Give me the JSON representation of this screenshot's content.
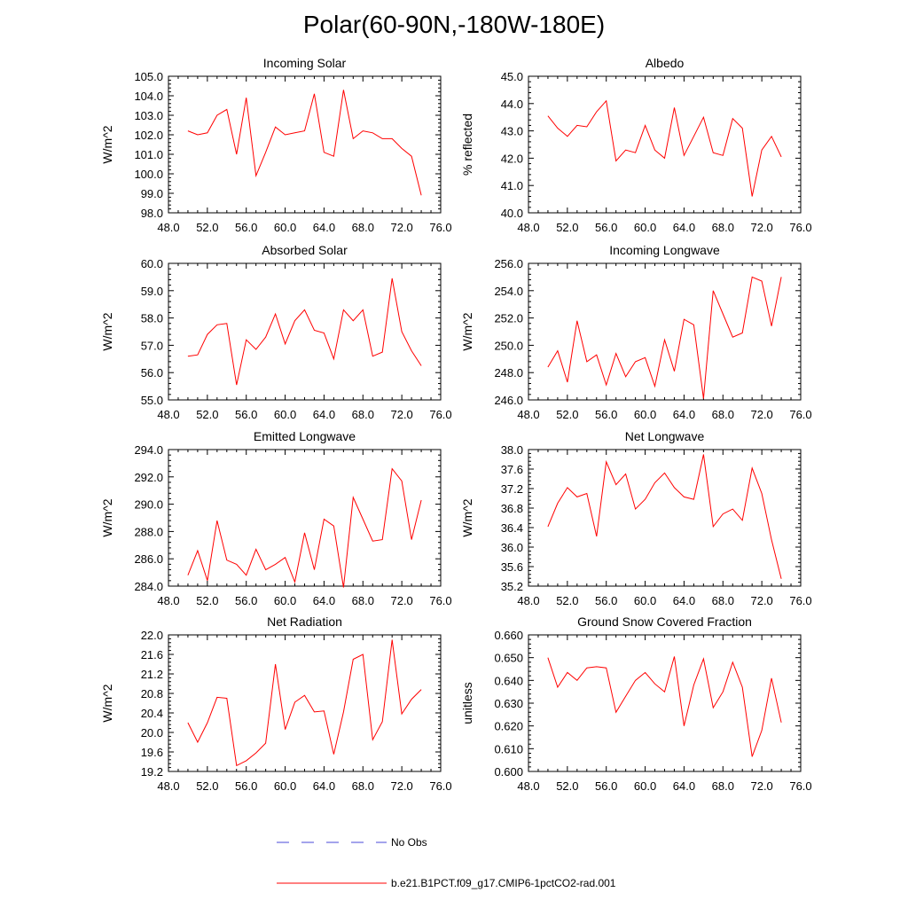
{
  "title": "Polar(60-90N,-180W-180E)",
  "legend": {
    "obs_label": "No Obs",
    "obs_color": "#4a4ad8",
    "model_label": "b.e21.B1PCT.f09_g17.CMIP6-1pctCO2-rad.001",
    "model_color": "#ff0000"
  },
  "chart_data": [
    {
      "type": "line",
      "title": "Incoming Solar",
      "ylabel": "W/m^2",
      "xlim": [
        48,
        76
      ],
      "ylim": [
        98,
        105
      ],
      "xticks": [
        "48.0",
        "52.0",
        "56.0",
        "60.0",
        "64.0",
        "68.0",
        "72.0",
        "76.0"
      ],
      "yticks": [
        "98.0",
        "99.0",
        "100.0",
        "101.0",
        "102.0",
        "103.0",
        "104.0",
        "105.0"
      ],
      "x": [
        50,
        51,
        52,
        53,
        54,
        55,
        56,
        57,
        58,
        59,
        60,
        61,
        62,
        63,
        64,
        65,
        66,
        67,
        68,
        69,
        70,
        71,
        72,
        73,
        74
      ],
      "series": [
        {
          "name": "b.e21.B1PCT.f09_g17.CMIP6-1pctCO2-rad.001",
          "values": [
            102.2,
            102.0,
            102.1,
            103.0,
            103.3,
            101.0,
            103.9,
            99.9,
            101.1,
            102.4,
            102.0,
            102.1,
            102.2,
            104.1,
            101.1,
            100.9,
            104.3,
            101.8,
            102.2,
            102.1,
            101.8,
            101.8,
            101.3,
            100.9,
            98.9
          ]
        }
      ]
    },
    {
      "type": "line",
      "title": "Albedo",
      "ylabel": "% reflected",
      "xlim": [
        48,
        76
      ],
      "ylim": [
        40,
        45
      ],
      "xticks": [
        "48.0",
        "52.0",
        "56.0",
        "60.0",
        "64.0",
        "68.0",
        "72.0",
        "76.0"
      ],
      "yticks": [
        "40.0",
        "41.0",
        "42.0",
        "43.0",
        "44.0",
        "45.0"
      ],
      "x": [
        50,
        51,
        52,
        53,
        54,
        55,
        56,
        57,
        58,
        59,
        60,
        61,
        62,
        63,
        64,
        65,
        66,
        67,
        68,
        69,
        70,
        71,
        72,
        73,
        74
      ],
      "series": [
        {
          "name": "b.e21.B1PCT.f09_g17.CMIP6-1pctCO2-rad.001",
          "values": [
            43.55,
            43.1,
            42.8,
            43.2,
            43.15,
            43.7,
            44.1,
            41.9,
            42.3,
            42.2,
            43.2,
            42.3,
            42.0,
            43.85,
            42.1,
            42.8,
            43.5,
            42.2,
            42.1,
            43.45,
            43.1,
            40.6,
            42.3,
            42.8,
            42.05
          ]
        }
      ]
    },
    {
      "type": "line",
      "title": "Absorbed Solar",
      "ylabel": "W/m^2",
      "xlim": [
        48,
        76
      ],
      "ylim": [
        55,
        60
      ],
      "xticks": [
        "48.0",
        "52.0",
        "56.0",
        "60.0",
        "64.0",
        "68.0",
        "72.0",
        "76.0"
      ],
      "yticks": [
        "55.0",
        "56.0",
        "57.0",
        "58.0",
        "59.0",
        "60.0"
      ],
      "x": [
        50,
        51,
        52,
        53,
        54,
        55,
        56,
        57,
        58,
        59,
        60,
        61,
        62,
        63,
        64,
        65,
        66,
        67,
        68,
        69,
        70,
        71,
        72,
        73,
        74
      ],
      "series": [
        {
          "name": "b.e21.B1PCT.f09_g17.CMIP6-1pctCO2-rad.001",
          "values": [
            56.6,
            56.65,
            57.4,
            57.75,
            57.8,
            55.55,
            57.2,
            56.85,
            57.3,
            58.15,
            57.05,
            57.9,
            58.3,
            57.55,
            57.45,
            56.5,
            58.3,
            57.9,
            58.3,
            56.6,
            56.75,
            59.45,
            57.5,
            56.8,
            56.25
          ]
        }
      ]
    },
    {
      "type": "line",
      "title": "Incoming Longwave",
      "ylabel": "W/m^2",
      "xlim": [
        48,
        76
      ],
      "ylim": [
        246,
        256
      ],
      "xticks": [
        "48.0",
        "52.0",
        "56.0",
        "60.0",
        "64.0",
        "68.0",
        "72.0",
        "76.0"
      ],
      "yticks": [
        "246.0",
        "248.0",
        "250.0",
        "252.0",
        "254.0",
        "256.0"
      ],
      "x": [
        50,
        51,
        52,
        53,
        54,
        55,
        56,
        57,
        58,
        59,
        60,
        61,
        62,
        63,
        64,
        65,
        66,
        67,
        68,
        69,
        70,
        71,
        72,
        73,
        74
      ],
      "series": [
        {
          "name": "b.e21.B1PCT.f09_g17.CMIP6-1pctCO2-rad.001",
          "values": [
            248.4,
            249.6,
            247.3,
            251.8,
            248.8,
            249.3,
            247.1,
            249.4,
            247.7,
            248.8,
            249.1,
            247.0,
            250.4,
            248.1,
            251.9,
            251.5,
            246.1,
            254.0,
            252.3,
            250.6,
            250.9,
            255.0,
            254.7,
            251.4,
            255.0
          ]
        }
      ]
    },
    {
      "type": "line",
      "title": "Emitted Longwave",
      "ylabel": "W/m^2",
      "xlim": [
        48,
        76
      ],
      "ylim": [
        284,
        294
      ],
      "xticks": [
        "48.0",
        "52.0",
        "56.0",
        "60.0",
        "64.0",
        "68.0",
        "72.0",
        "76.0"
      ],
      "yticks": [
        "284.0",
        "286.0",
        "288.0",
        "290.0",
        "292.0",
        "294.0"
      ],
      "x": [
        50,
        51,
        52,
        53,
        54,
        55,
        56,
        57,
        58,
        59,
        60,
        61,
        62,
        63,
        64,
        65,
        66,
        67,
        68,
        69,
        70,
        71,
        72,
        73,
        74
      ],
      "series": [
        {
          "name": "b.e21.B1PCT.f09_g17.CMIP6-1pctCO2-rad.001",
          "values": [
            284.8,
            286.6,
            284.4,
            288.8,
            285.9,
            285.6,
            284.8,
            286.7,
            285.2,
            285.6,
            286.1,
            284.3,
            287.9,
            285.2,
            288.9,
            288.4,
            283.9,
            290.5,
            288.9,
            287.3,
            287.4,
            292.6,
            291.7,
            287.4,
            290.3
          ]
        }
      ]
    },
    {
      "type": "line",
      "title": "Net Longwave",
      "ylabel": "W/m^2",
      "xlim": [
        48,
        76
      ],
      "ylim": [
        35.2,
        38.0
      ],
      "xticks": [
        "48.0",
        "52.0",
        "56.0",
        "60.0",
        "64.0",
        "68.0",
        "72.0",
        "76.0"
      ],
      "yticks": [
        "35.2",
        "35.6",
        "36.0",
        "36.4",
        "36.8",
        "37.2",
        "37.6",
        "38.0"
      ],
      "x": [
        50,
        51,
        52,
        53,
        54,
        55,
        56,
        57,
        58,
        59,
        60,
        61,
        62,
        63,
        64,
        65,
        66,
        67,
        68,
        69,
        70,
        71,
        72,
        73,
        74
      ],
      "series": [
        {
          "name": "b.e21.B1PCT.f09_g17.CMIP6-1pctCO2-rad.001",
          "values": [
            36.42,
            36.9,
            37.22,
            37.03,
            37.1,
            36.22,
            37.75,
            37.28,
            37.5,
            36.78,
            36.98,
            37.32,
            37.52,
            37.22,
            37.03,
            36.98,
            37.9,
            36.42,
            36.68,
            36.78,
            36.55,
            37.62,
            37.1,
            36.15,
            35.35
          ]
        }
      ]
    },
    {
      "type": "line",
      "title": "Net Radiation",
      "ylabel": "W/m^2",
      "xlim": [
        48,
        76
      ],
      "ylim": [
        19.2,
        22.0
      ],
      "xticks": [
        "48.0",
        "52.0",
        "56.0",
        "60.0",
        "64.0",
        "68.0",
        "72.0",
        "76.0"
      ],
      "yticks": [
        "19.2",
        "19.6",
        "20.0",
        "20.4",
        "20.8",
        "21.2",
        "21.6",
        "22.0"
      ],
      "x": [
        50,
        51,
        52,
        53,
        54,
        55,
        56,
        57,
        58,
        59,
        60,
        61,
        62,
        63,
        64,
        65,
        66,
        67,
        68,
        69,
        70,
        71,
        72,
        73,
        74
      ],
      "series": [
        {
          "name": "b.e21.B1PCT.f09_g17.CMIP6-1pctCO2-rad.001",
          "values": [
            20.2,
            19.8,
            20.2,
            20.72,
            20.7,
            19.32,
            19.42,
            19.58,
            19.78,
            21.4,
            20.06,
            20.62,
            20.76,
            20.42,
            20.44,
            19.55,
            20.42,
            21.5,
            21.6,
            19.85,
            20.22,
            21.9,
            20.38,
            20.68,
            20.88
          ]
        }
      ]
    },
    {
      "type": "line",
      "title": "Ground Snow Covered Fraction",
      "ylabel": "unitless",
      "xlim": [
        48,
        76
      ],
      "ylim": [
        0.6,
        0.66
      ],
      "xticks": [
        "48.0",
        "52.0",
        "56.0",
        "60.0",
        "64.0",
        "68.0",
        "72.0",
        "76.0"
      ],
      "yticks": [
        "0.600",
        "0.610",
        "0.620",
        "0.630",
        "0.640",
        "0.650",
        "0.660"
      ],
      "x": [
        50,
        51,
        52,
        53,
        54,
        55,
        56,
        57,
        58,
        59,
        60,
        61,
        62,
        63,
        64,
        65,
        66,
        67,
        68,
        69,
        70,
        71,
        72,
        73,
        74
      ],
      "series": [
        {
          "name": "b.e21.B1PCT.f09_g17.CMIP6-1pctCO2-rad.001",
          "values": [
            0.65,
            0.637,
            0.6435,
            0.64,
            0.6455,
            0.646,
            0.6455,
            0.626,
            0.633,
            0.64,
            0.6435,
            0.6385,
            0.635,
            0.6505,
            0.62,
            0.638,
            0.6495,
            0.628,
            0.635,
            0.648,
            0.637,
            0.6065,
            0.618,
            0.641,
            0.6215
          ]
        }
      ]
    }
  ]
}
